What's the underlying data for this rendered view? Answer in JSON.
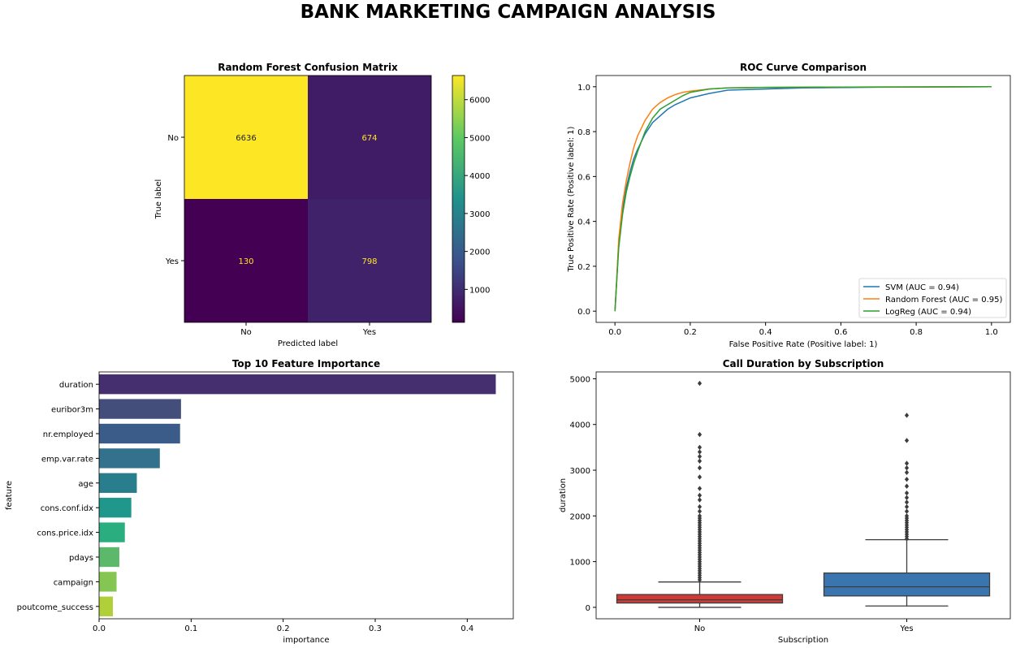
{
  "figure": {
    "suptitle": "BANK MARKETING CAMPAIGN ANALYSIS"
  },
  "chart_data": [
    {
      "type": "heatmap",
      "title": "Random Forest Confusion Matrix",
      "xlabel": "Predicted label",
      "ylabel": "True label",
      "x_categories": [
        "No",
        "Yes"
      ],
      "y_categories": [
        "No",
        "Yes"
      ],
      "values": [
        [
          6636,
          674
        ],
        [
          130,
          798
        ]
      ],
      "colormap": "viridis",
      "colorbar": {
        "ticks": [
          1000,
          2000,
          3000,
          4000,
          5000,
          6000
        ],
        "range": [
          130,
          6636
        ]
      }
    },
    {
      "type": "line",
      "title": "ROC Curve Comparison",
      "xlabel": "False Positive Rate (Positive label: 1)",
      "ylabel": "True Positive Rate (Positive label: 1)",
      "xlim": [
        -0.05,
        1.05
      ],
      "ylim": [
        -0.05,
        1.05
      ],
      "xticks": [
        0.0,
        0.2,
        0.4,
        0.6,
        0.8,
        1.0
      ],
      "yticks": [
        0.0,
        0.2,
        0.4,
        0.6,
        0.8,
        1.0
      ],
      "legend_position": "lower-right",
      "series": [
        {
          "name": "SVM (AUC = 0.94)",
          "color": "#1f77b4",
          "x": [
            0,
            0.005,
            0.01,
            0.02,
            0.03,
            0.04,
            0.05,
            0.06,
            0.08,
            0.1,
            0.12,
            0.14,
            0.16,
            0.18,
            0.2,
            0.25,
            0.3,
            0.4,
            0.5,
            0.7,
            1.0
          ],
          "y": [
            0,
            0.15,
            0.3,
            0.45,
            0.55,
            0.62,
            0.68,
            0.72,
            0.79,
            0.84,
            0.87,
            0.9,
            0.92,
            0.935,
            0.95,
            0.97,
            0.985,
            0.99,
            0.995,
            0.998,
            1.0
          ]
        },
        {
          "name": "Random Forest (AUC = 0.95)",
          "color": "#ff7f0e",
          "x": [
            0,
            0.005,
            0.01,
            0.02,
            0.03,
            0.04,
            0.05,
            0.06,
            0.08,
            0.1,
            0.12,
            0.14,
            0.16,
            0.18,
            0.2,
            0.25,
            0.3,
            0.4,
            0.5,
            0.7,
            1.0
          ],
          "y": [
            0,
            0.15,
            0.32,
            0.48,
            0.58,
            0.66,
            0.73,
            0.78,
            0.85,
            0.9,
            0.93,
            0.95,
            0.965,
            0.975,
            0.98,
            0.99,
            0.995,
            0.997,
            0.998,
            0.999,
            1.0
          ]
        },
        {
          "name": "LogReg (AUC = 0.94)",
          "color": "#2ca02c",
          "x": [
            0,
            0.005,
            0.01,
            0.02,
            0.03,
            0.04,
            0.05,
            0.06,
            0.08,
            0.1,
            0.12,
            0.14,
            0.16,
            0.18,
            0.2,
            0.25,
            0.3,
            0.4,
            0.5,
            0.7,
            1.0
          ],
          "y": [
            0,
            0.14,
            0.28,
            0.43,
            0.53,
            0.6,
            0.66,
            0.71,
            0.8,
            0.86,
            0.9,
            0.92,
            0.94,
            0.96,
            0.975,
            0.99,
            0.995,
            0.997,
            0.998,
            0.999,
            1.0
          ]
        }
      ]
    },
    {
      "type": "bar",
      "orientation": "horizontal",
      "title": "Top 10 Feature Importance",
      "xlabel": "importance",
      "ylabel": "feature",
      "xlim": [
        0,
        0.45
      ],
      "xticks": [
        0.0,
        0.1,
        0.2,
        0.3,
        0.4
      ],
      "categories": [
        "duration",
        "euribor3m",
        "nr.employed",
        "emp.var.rate",
        "age",
        "cons.conf.idx",
        "cons.price.idx",
        "pdays",
        "campaign",
        "poutcome_success"
      ],
      "values": [
        0.431,
        0.089,
        0.088,
        0.066,
        0.041,
        0.035,
        0.028,
        0.022,
        0.019,
        0.015
      ],
      "colors": [
        "#462f6f",
        "#434e7b",
        "#3b5c88",
        "#33718c",
        "#287e8d",
        "#1f988b",
        "#2aae80",
        "#5cb86a",
        "#85c653",
        "#b1cf38"
      ]
    },
    {
      "type": "box",
      "title": "Call Duration by Subscription",
      "xlabel": "Subscription",
      "ylabel": "duration",
      "ylim": [
        -250,
        5150
      ],
      "yticks": [
        0,
        1000,
        2000,
        3000,
        4000,
        5000
      ],
      "categories": [
        "No",
        "Yes"
      ],
      "colors": [
        "#ce3a36",
        "#3b75af"
      ],
      "boxes": [
        {
          "min": 0,
          "q1": 95,
          "median": 165,
          "q3": 280,
          "max": 555,
          "outliers": [
            600,
            650,
            700,
            750,
            800,
            850,
            900,
            950,
            1000,
            1050,
            1100,
            1150,
            1200,
            1250,
            1300,
            1350,
            1400,
            1450,
            1500,
            1550,
            1600,
            1650,
            1700,
            1750,
            1800,
            1850,
            1900,
            1950,
            2000,
            2100,
            2200,
            2350,
            2450,
            2600,
            2850,
            3050,
            3200,
            3300,
            3400,
            3500,
            3780,
            4900
          ]
        },
        {
          "min": 30,
          "q1": 250,
          "median": 450,
          "q3": 750,
          "max": 1480,
          "outliers": [
            1500,
            1550,
            1600,
            1650,
            1700,
            1750,
            1800,
            1850,
            1900,
            1950,
            2000,
            2100,
            2200,
            2300,
            2400,
            2500,
            2650,
            2800,
            2950,
            3050,
            3150,
            3650,
            4200
          ]
        }
      ]
    }
  ]
}
